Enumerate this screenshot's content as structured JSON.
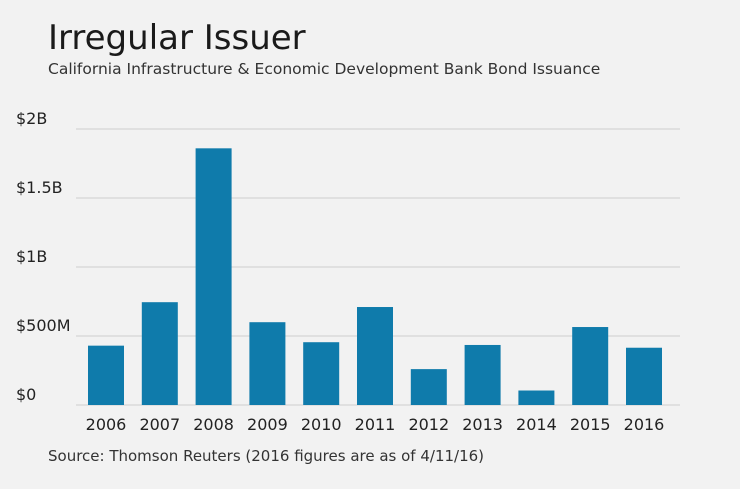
{
  "title": "Irregular Issuer",
  "subtitle": "California Infrastructure & Economic Development Bank Bond Issuance",
  "source": "Source: Thomson Reuters (2016 figures are as of 4/11/16)",
  "colors": {
    "bar": "#0f7bab",
    "grid": "#cfcfcf",
    "background": "#f2f2f2"
  },
  "chart_data": {
    "type": "bar",
    "categories": [
      "2006",
      "2007",
      "2008",
      "2009",
      "2010",
      "2011",
      "2012",
      "2013",
      "2014",
      "2015",
      "2016"
    ],
    "values": [
      430,
      745,
      1860,
      600,
      455,
      710,
      260,
      435,
      105,
      565,
      415
    ],
    "unit": "millions of dollars",
    "ylim": [
      0,
      2000
    ],
    "yticks": [
      {
        "value": 0,
        "label": "$0"
      },
      {
        "value": 500,
        "label": "$500M"
      },
      {
        "value": 1000,
        "label": "$1B"
      },
      {
        "value": 1500,
        "label": "$1.5B"
      },
      {
        "value": 2000,
        "label": "$2B"
      }
    ],
    "grid": true,
    "legend": "none"
  }
}
